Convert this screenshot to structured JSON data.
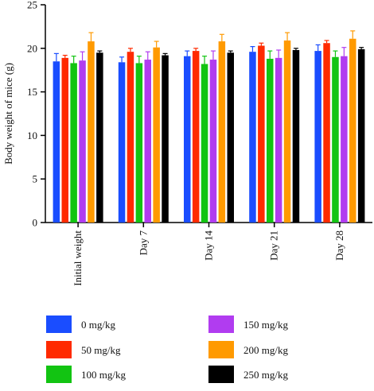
{
  "chart_data": {
    "type": "bar",
    "ylabel": "Body weight of mice (g)",
    "xlabel": "",
    "ylim": [
      0,
      25
    ],
    "yticks": [
      0,
      5,
      10,
      15,
      20,
      25
    ],
    "categories": [
      "Initial weight",
      "Day 7",
      "Day 14",
      "Day 21",
      "Day 28"
    ],
    "legend_position": "bottom",
    "error_bars": true,
    "series": [
      {
        "name": "0 mg/kg",
        "color": "#1a4dff",
        "values": [
          18.5,
          18.4,
          19.1,
          19.6,
          19.7
        ],
        "errors": [
          0.9,
          0.6,
          0.6,
          0.6,
          0.7
        ]
      },
      {
        "name": "50 mg/kg",
        "color": "#ff2a00",
        "values": [
          18.9,
          19.6,
          19.7,
          20.3,
          20.6
        ],
        "errors": [
          0.3,
          0.4,
          0.3,
          0.3,
          0.3
        ]
      },
      {
        "name": "100 mg/kg",
        "color": "#12c412",
        "values": [
          18.3,
          18.3,
          18.2,
          18.8,
          19.0
        ],
        "errors": [
          0.8,
          0.8,
          0.9,
          0.9,
          0.7
        ]
      },
      {
        "name": "150 mg/kg",
        "color": "#b13cf0",
        "values": [
          18.6,
          18.7,
          18.7,
          18.9,
          19.1
        ],
        "errors": [
          1.0,
          0.9,
          1.0,
          0.9,
          1.0
        ]
      },
      {
        "name": "200 mg/kg",
        "color": "#ff9a00",
        "values": [
          20.8,
          20.1,
          20.8,
          20.9,
          21.1
        ],
        "errors": [
          1.0,
          0.7,
          0.8,
          0.9,
          0.9
        ]
      },
      {
        "name": "250 mg/kg",
        "color": "#000000",
        "values": [
          19.5,
          19.2,
          19.5,
          19.8,
          19.9
        ],
        "errors": [
          0.2,
          0.2,
          0.2,
          0.2,
          0.2
        ]
      }
    ]
  }
}
